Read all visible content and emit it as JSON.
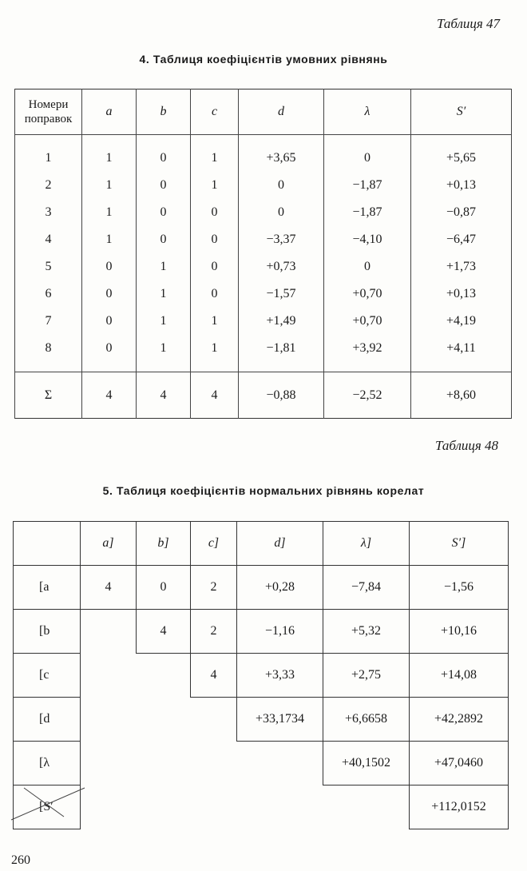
{
  "table47": {
    "caption": "Таблиця 47",
    "title": "4. Таблиця коефіцієнтів умовних рівнянь",
    "headers": [
      "Номери поправок",
      "a",
      "b",
      "c",
      "d",
      "λ",
      "S′"
    ],
    "rows": [
      [
        "1",
        "1",
        "0",
        "1",
        "+3,65",
        "0",
        "+5,65"
      ],
      [
        "2",
        "1",
        "0",
        "1",
        "0",
        "−1,87",
        "+0,13"
      ],
      [
        "3",
        "1",
        "0",
        "0",
        "0",
        "−1,87",
        "−0,87"
      ],
      [
        "4",
        "1",
        "0",
        "0",
        "−3,37",
        "−4,10",
        "−6,47"
      ],
      [
        "5",
        "0",
        "1",
        "0",
        "+0,73",
        "0",
        "+1,73"
      ],
      [
        "6",
        "0",
        "1",
        "0",
        "−1,57",
        "+0,70",
        "+0,13"
      ],
      [
        "7",
        "0",
        "1",
        "1",
        "+1,49",
        "+0,70",
        "+4,19"
      ],
      [
        "8",
        "0",
        "1",
        "1",
        "−1,81",
        "+3,92",
        "+4,11"
      ]
    ],
    "sum": [
      "Σ",
      "4",
      "4",
      "4",
      "−0,88",
      "−2,52",
      "+8,60"
    ]
  },
  "table48": {
    "caption": "Таблиця 48",
    "title": "5. Таблиця коефіцієнтів нормальних рівнянь корелат",
    "headers": [
      "",
      "a]",
      "b]",
      "c]",
      "d]",
      "λ]",
      "S′]"
    ],
    "rows": [
      {
        "label": "[a",
        "cells": [
          "4",
          "0",
          "2",
          "+0,28",
          "−7,84",
          "−1,56"
        ]
      },
      {
        "label": "[b",
        "cells": [
          "",
          "4",
          "2",
          "−1,16",
          "+5,32",
          "+10,16"
        ]
      },
      {
        "label": "[c",
        "cells": [
          "",
          "",
          "4",
          "+3,33",
          "+2,75",
          "+14,08"
        ]
      },
      {
        "label": "[d",
        "cells": [
          "",
          "",
          "",
          "+33,1734",
          "+6,6658",
          "+42,2892"
        ]
      },
      {
        "label": "[λ",
        "cells": [
          "",
          "",
          "",
          "",
          "+40,1502",
          "+47,0460"
        ]
      },
      {
        "label": "[S′",
        "cells": [
          "",
          "",
          "",
          "",
          "",
          "+112,0152"
        ]
      }
    ]
  },
  "page_number": "260"
}
